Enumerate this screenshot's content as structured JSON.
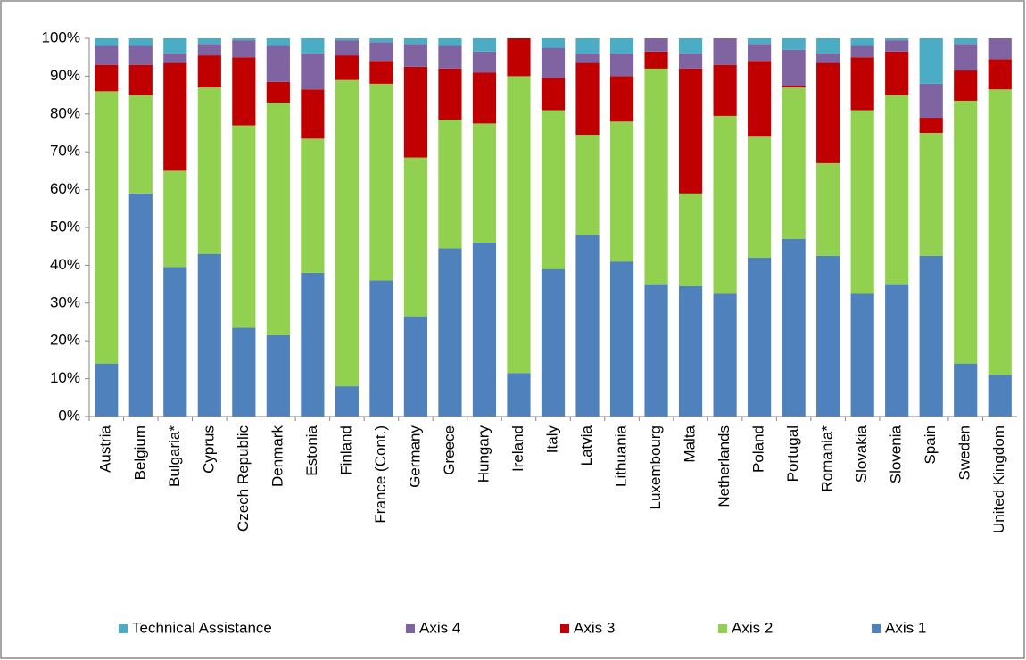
{
  "chart_data": {
    "type": "stacked_bar",
    "categories": [
      "Austria",
      "Belgium",
      "Bulgaria*",
      "Cyprus",
      "Czech Republic",
      "Denmark",
      "Estonia",
      "Finland",
      "France (Cont.)",
      "Germany",
      "Greece",
      "Hungary",
      "Ireland",
      "Italy",
      "Latvia",
      "Lithuania",
      "Luxembourg",
      "Malta",
      "Netherlands",
      "Poland",
      "Portugal",
      "Romania*",
      "Slovakia",
      "Slovenia",
      "Spain",
      "Sweden",
      "United Kingdom"
    ],
    "series": [
      {
        "name": "Axis 1",
        "color": "#4f81bd",
        "values": [
          14,
          59,
          39.5,
          43,
          23.5,
          21.5,
          38,
          8,
          36,
          26.5,
          44.5,
          46,
          11.5,
          39,
          48,
          41,
          35,
          34.5,
          32.5,
          42,
          47,
          42.5,
          32.5,
          35,
          42.5,
          14,
          11
        ]
      },
      {
        "name": "Axis 2",
        "color": "#92d050",
        "values": [
          72,
          26,
          25.5,
          44,
          53.5,
          61.5,
          35.5,
          81,
          52,
          42,
          34,
          31.5,
          78.5,
          42,
          26.5,
          37,
          57,
          24.5,
          47,
          32,
          40,
          24.5,
          48.5,
          50,
          32.5,
          69.5,
          75.5
        ]
      },
      {
        "name": "Axis 3",
        "color": "#c00000",
        "values": [
          7,
          8,
          28.5,
          8.5,
          18,
          5.5,
          13,
          6.5,
          6,
          24,
          13.5,
          13.5,
          10,
          8.5,
          19,
          12,
          4.5,
          33,
          13.5,
          20,
          0.5,
          26.5,
          14,
          11.5,
          4,
          8,
          8
        ]
      },
      {
        "name": "Axis 4",
        "color": "#8064a2",
        "values": [
          5,
          5,
          2.5,
          3,
          4.5,
          9.5,
          9.5,
          4,
          5,
          6,
          6,
          5.5,
          0,
          8,
          2.5,
          6,
          3.5,
          4,
          7,
          4.5,
          9.5,
          2.5,
          3,
          3,
          9,
          7,
          5.5
        ]
      },
      {
        "name": "Technical Assistance",
        "color": "#4bacc6",
        "values": [
          2,
          2,
          4,
          1.5,
          0.5,
          2,
          4,
          0.5,
          1,
          1.5,
          2,
          3.5,
          0,
          2.5,
          4,
          4,
          0,
          4,
          0,
          1.5,
          3,
          4,
          2,
          0.5,
          12,
          1.5,
          0
        ]
      }
    ],
    "ylim": [
      0,
      100
    ],
    "yticks": [
      {
        "value": 0,
        "label": "0%"
      },
      {
        "value": 10,
        "label": "10%"
      },
      {
        "value": 20,
        "label": "20%"
      },
      {
        "value": 30,
        "label": "30%"
      },
      {
        "value": 40,
        "label": "40%"
      },
      {
        "value": 50,
        "label": "50%"
      },
      {
        "value": 60,
        "label": "60%"
      },
      {
        "value": 70,
        "label": "70%"
      },
      {
        "value": 80,
        "label": "80%"
      },
      {
        "value": 90,
        "label": "90%"
      },
      {
        "value": 100,
        "label": "100%"
      }
    ],
    "grid": false,
    "legend": "bottom"
  }
}
